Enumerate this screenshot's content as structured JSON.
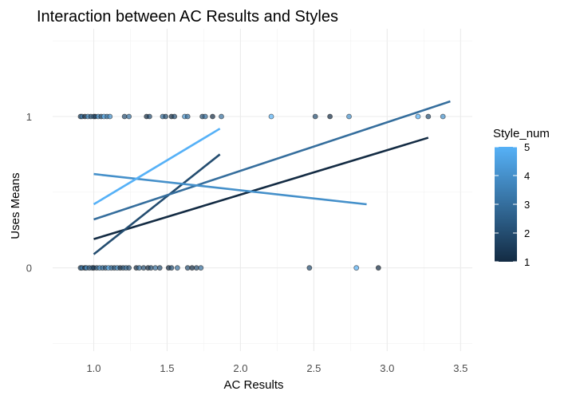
{
  "chart_data": {
    "type": "scatter",
    "title": "Interaction between AC Results and Styles",
    "xlabel": "AC Results",
    "ylabel": "Uses Means",
    "xlim": [
      0.72,
      3.58
    ],
    "ylim": [
      -0.55,
      1.58
    ],
    "x_ticks": [
      1.0,
      1.5,
      2.0,
      2.5,
      3.0,
      3.5
    ],
    "x_tick_labels": [
      "1.0",
      "1.5",
      "2.0",
      "2.5",
      "3.0",
      "3.5"
    ],
    "y_ticks": [
      0,
      1
    ],
    "y_tick_labels": [
      "0",
      "1"
    ],
    "grid": true,
    "legend_position": "right",
    "legend": {
      "title": "Style_num",
      "type": "colorbar",
      "min": 1,
      "max": 5,
      "ticks": [
        1,
        2,
        3,
        4,
        5
      ],
      "tick_labels": [
        "1",
        "2",
        "3",
        "4",
        "5"
      ],
      "low_color": "#132B43",
      "high_color": "#56B1F7"
    },
    "points": [
      {
        "x": 0.91,
        "y": 1,
        "style": 2
      },
      {
        "x": 0.92,
        "y": 1,
        "style": 3
      },
      {
        "x": 0.94,
        "y": 1,
        "style": 1
      },
      {
        "x": 0.96,
        "y": 1,
        "style": 4
      },
      {
        "x": 0.98,
        "y": 1,
        "style": 2
      },
      {
        "x": 1.0,
        "y": 1,
        "style": 3
      },
      {
        "x": 1.01,
        "y": 1,
        "style": 1
      },
      {
        "x": 1.03,
        "y": 1,
        "style": 4
      },
      {
        "x": 1.05,
        "y": 1,
        "style": 2
      },
      {
        "x": 1.07,
        "y": 1,
        "style": 5
      },
      {
        "x": 1.09,
        "y": 1,
        "style": 3
      },
      {
        "x": 1.11,
        "y": 1,
        "style": 4
      },
      {
        "x": 1.21,
        "y": 1,
        "style": 2
      },
      {
        "x": 1.24,
        "y": 1,
        "style": 3
      },
      {
        "x": 1.36,
        "y": 1,
        "style": 1
      },
      {
        "x": 1.38,
        "y": 1,
        "style": 2
      },
      {
        "x": 1.47,
        "y": 1,
        "style": 3
      },
      {
        "x": 1.49,
        "y": 1,
        "style": 2
      },
      {
        "x": 1.53,
        "y": 1,
        "style": 1
      },
      {
        "x": 1.55,
        "y": 1,
        "style": 2
      },
      {
        "x": 1.62,
        "y": 1,
        "style": 4
      },
      {
        "x": 1.64,
        "y": 1,
        "style": 3
      },
      {
        "x": 1.74,
        "y": 1,
        "style": 2
      },
      {
        "x": 1.76,
        "y": 1,
        "style": 3
      },
      {
        "x": 1.81,
        "y": 1,
        "style": 1
      },
      {
        "x": 1.87,
        "y": 1,
        "style": 3
      },
      {
        "x": 2.21,
        "y": 1,
        "style": 5
      },
      {
        "x": 2.51,
        "y": 1,
        "style": 2
      },
      {
        "x": 2.61,
        "y": 1,
        "style": 1
      },
      {
        "x": 2.74,
        "y": 1,
        "style": 4
      },
      {
        "x": 3.21,
        "y": 1,
        "style": 5
      },
      {
        "x": 3.28,
        "y": 1,
        "style": 2
      },
      {
        "x": 3.38,
        "y": 1,
        "style": 4
      },
      {
        "x": 0.91,
        "y": 0,
        "style": 2
      },
      {
        "x": 0.92,
        "y": 0,
        "style": 3
      },
      {
        "x": 0.94,
        "y": 0,
        "style": 1
      },
      {
        "x": 0.95,
        "y": 0,
        "style": 4
      },
      {
        "x": 0.97,
        "y": 0,
        "style": 2
      },
      {
        "x": 0.99,
        "y": 0,
        "style": 3
      },
      {
        "x": 1.0,
        "y": 0,
        "style": 1
      },
      {
        "x": 1.02,
        "y": 0,
        "style": 2
      },
      {
        "x": 1.04,
        "y": 0,
        "style": 4
      },
      {
        "x": 1.06,
        "y": 0,
        "style": 3
      },
      {
        "x": 1.08,
        "y": 0,
        "style": 2
      },
      {
        "x": 1.1,
        "y": 0,
        "style": 5
      },
      {
        "x": 1.12,
        "y": 0,
        "style": 3
      },
      {
        "x": 1.14,
        "y": 0,
        "style": 2
      },
      {
        "x": 1.16,
        "y": 0,
        "style": 4
      },
      {
        "x": 1.18,
        "y": 0,
        "style": 1
      },
      {
        "x": 1.2,
        "y": 0,
        "style": 2
      },
      {
        "x": 1.22,
        "y": 0,
        "style": 3
      },
      {
        "x": 1.24,
        "y": 0,
        "style": 2
      },
      {
        "x": 1.29,
        "y": 0,
        "style": 1
      },
      {
        "x": 1.31,
        "y": 0,
        "style": 3
      },
      {
        "x": 1.34,
        "y": 0,
        "style": 2
      },
      {
        "x": 1.37,
        "y": 0,
        "style": 1
      },
      {
        "x": 1.39,
        "y": 0,
        "style": 2
      },
      {
        "x": 1.42,
        "y": 0,
        "style": 3
      },
      {
        "x": 1.45,
        "y": 0,
        "style": 2
      },
      {
        "x": 1.51,
        "y": 0,
        "style": 1
      },
      {
        "x": 1.53,
        "y": 0,
        "style": 2
      },
      {
        "x": 1.57,
        "y": 0,
        "style": 3
      },
      {
        "x": 1.64,
        "y": 0,
        "style": 2
      },
      {
        "x": 1.67,
        "y": 0,
        "style": 1
      },
      {
        "x": 1.7,
        "y": 0,
        "style": 2
      },
      {
        "x": 1.73,
        "y": 0,
        "style": 3
      },
      {
        "x": 2.47,
        "y": 0,
        "style": 2
      },
      {
        "x": 2.79,
        "y": 0,
        "style": 5
      },
      {
        "x": 2.94,
        "y": 0,
        "style": 1
      }
    ],
    "series": [
      {
        "style": 1,
        "x": [
          1.0,
          3.28
        ],
        "y": [
          0.19,
          0.86
        ]
      },
      {
        "style": 2,
        "x": [
          1.0,
          1.86
        ],
        "y": [
          0.09,
          0.75
        ]
      },
      {
        "style": 3,
        "x": [
          1.0,
          3.43
        ],
        "y": [
          0.32,
          1.1
        ]
      },
      {
        "style": 4,
        "x": [
          1.0,
          2.86
        ],
        "y": [
          0.62,
          0.42
        ]
      },
      {
        "style": 5,
        "x": [
          1.0,
          1.86
        ],
        "y": [
          0.42,
          0.92
        ]
      }
    ]
  }
}
